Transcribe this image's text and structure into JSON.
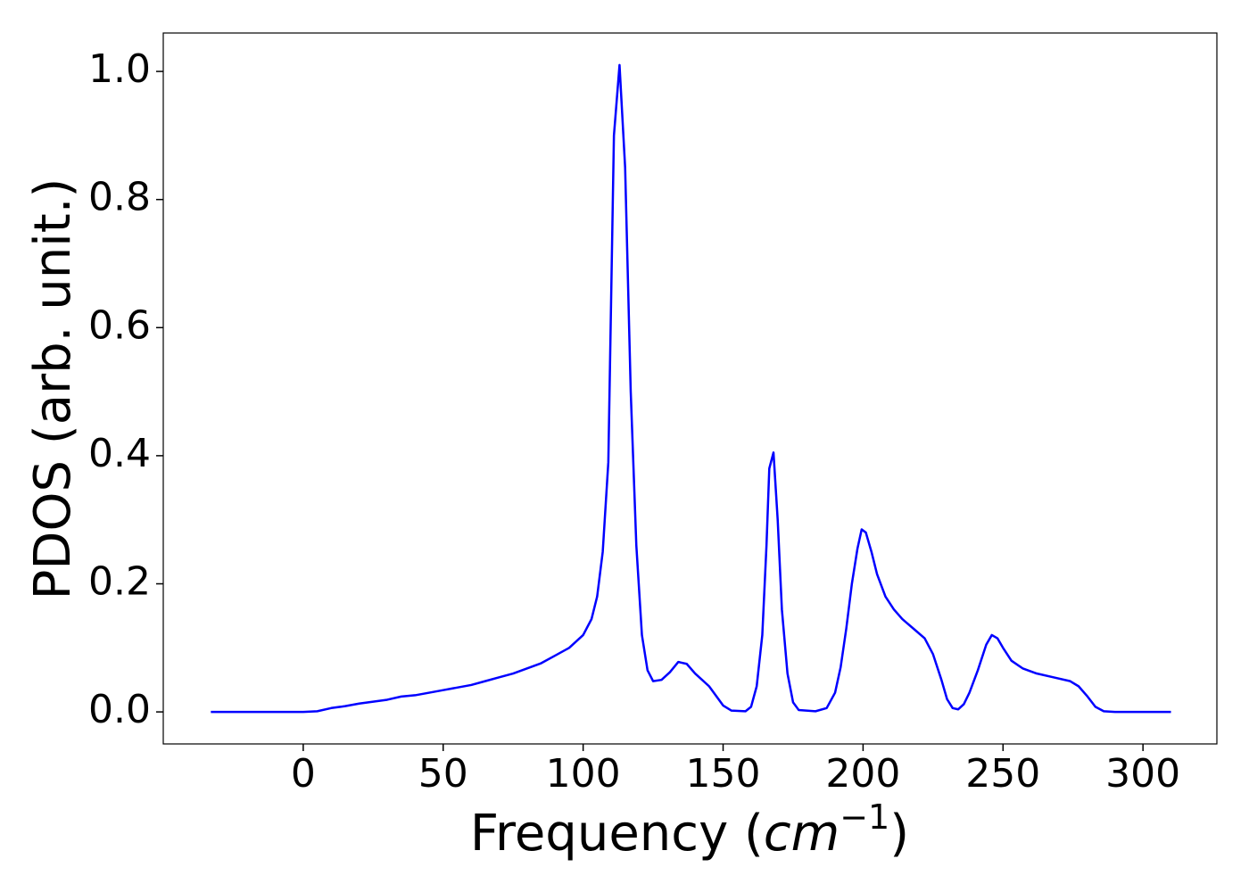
{
  "chart_data": {
    "type": "line",
    "xlabel": [
      "Frequency (",
      "cm",
      "−1",
      ")"
    ],
    "ylabel": "PDOS (arb. unit.)",
    "x": [
      -33,
      0,
      5,
      10,
      15,
      20,
      25,
      30,
      35,
      40,
      45,
      50,
      55,
      60,
      65,
      70,
      75,
      80,
      85,
      90,
      95,
      100,
      103,
      105,
      107,
      109,
      111,
      113,
      115,
      117,
      119,
      121,
      123,
      125,
      128,
      131,
      134,
      137,
      140,
      145,
      150,
      153,
      158,
      160,
      162,
      164,
      165.5,
      166.5,
      168,
      169.5,
      171,
      173,
      175,
      177,
      183,
      187,
      190,
      192,
      194,
      196,
      198,
      199.5,
      201,
      203,
      205,
      208,
      211,
      214,
      218,
      222,
      225,
      228,
      230,
      232,
      234,
      236,
      238,
      241,
      244,
      246,
      248,
      250,
      253,
      257,
      262,
      268,
      274,
      277,
      280,
      283,
      286,
      290,
      310
    ],
    "series": [
      {
        "name": "PDOS",
        "color": "#0000ff",
        "values": [
          0,
          0,
          0.001,
          0.006,
          0.009,
          0.013,
          0.016,
          0.019,
          0.024,
          0.026,
          0.03,
          0.034,
          0.038,
          0.042,
          0.048,
          0.054,
          0.06,
          0.068,
          0.076,
          0.088,
          0.1,
          0.12,
          0.145,
          0.18,
          0.25,
          0.39,
          0.9,
          1.01,
          0.85,
          0.5,
          0.26,
          0.12,
          0.065,
          0.048,
          0.05,
          0.062,
          0.078,
          0.075,
          0.06,
          0.04,
          0.01,
          0.002,
          0.001,
          0.008,
          0.04,
          0.12,
          0.26,
          0.38,
          0.405,
          0.3,
          0.16,
          0.06,
          0.015,
          0.003,
          0.001,
          0.006,
          0.03,
          0.07,
          0.13,
          0.2,
          0.255,
          0.285,
          0.28,
          0.25,
          0.215,
          0.18,
          0.16,
          0.145,
          0.13,
          0.115,
          0.09,
          0.05,
          0.02,
          0.006,
          0.004,
          0.012,
          0.03,
          0.065,
          0.105,
          0.12,
          0.115,
          0.1,
          0.08,
          0.068,
          0.06,
          0.054,
          0.048,
          0.04,
          0.025,
          0.008,
          0.001,
          0,
          0
        ]
      }
    ],
    "xlim": [
      -50,
      326.4
    ],
    "ylim": [
      -0.05,
      1.06
    ],
    "xticks": [
      0,
      50,
      100,
      150,
      200,
      250,
      300
    ],
    "yticks": [
      {
        "value": 0,
        "label": "0.0"
      },
      {
        "value": 0.2,
        "label": "0.2"
      },
      {
        "value": 0.4,
        "label": "0.4"
      },
      {
        "value": 0.6,
        "label": "0.6"
      },
      {
        "value": 0.8,
        "label": "0.8"
      },
      {
        "value": 1.0,
        "label": "1.0"
      }
    ]
  }
}
